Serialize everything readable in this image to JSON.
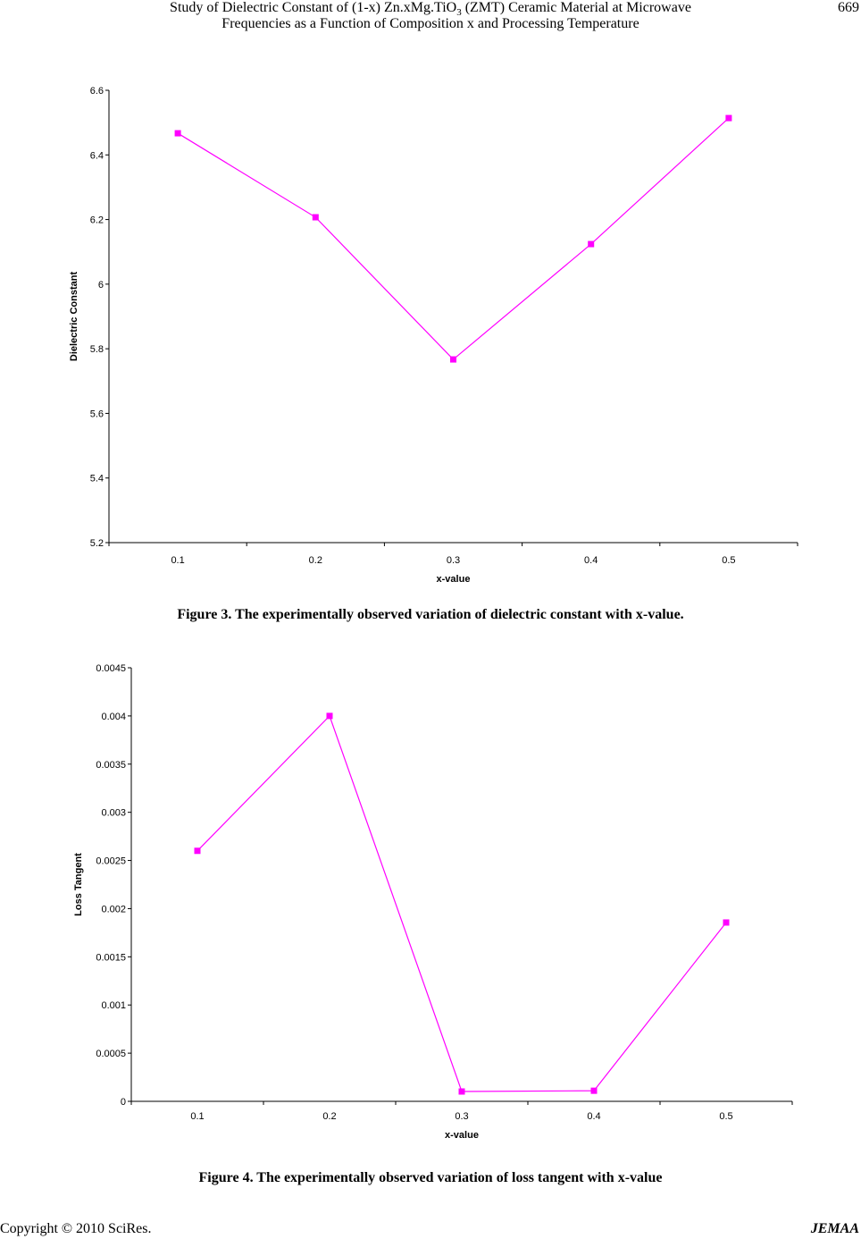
{
  "header": {
    "title_line1_pre": "Study of Dielectric Constant of (1-x) Zn.xMg.TiO",
    "title_line1_sub": "3",
    "title_line1_post": " (ZMT) Ceramic Material at Microwave",
    "title_line2": "Frequencies as a Function of Composition x and Processing Temperature",
    "page_number": "669"
  },
  "captions": {
    "fig3": "Figure 3. The experimentally observed variation of dielectric constant with x-value.",
    "fig4": "Figure 4. The experimentally observed variation of loss tangent with x-value"
  },
  "footer": {
    "copyright": "Copyright © 2010 SciRes.",
    "journal": "JEMAA"
  },
  "colors": {
    "series": "#ff00ff",
    "axis": "#000000"
  },
  "chart_data": [
    {
      "type": "line",
      "title": "",
      "xlabel": "x-value",
      "ylabel": "Dielectric Constant",
      "categories": [
        "0.1",
        "0.2",
        "0.3",
        "0.4",
        "0.5"
      ],
      "ylim": [
        5.2,
        6.6
      ],
      "yticks": [
        "5.2",
        "5.4",
        "5.6",
        "5.8",
        "6",
        "6.2",
        "6.4",
        "6.6"
      ],
      "grid": false,
      "series": [
        {
          "name": "Dielectric Constant",
          "values": [
            6.467,
            6.207,
            5.767,
            6.124,
            6.514
          ]
        }
      ]
    },
    {
      "type": "line",
      "title": "",
      "xlabel": "x-value",
      "ylabel": "Loss Tangent",
      "categories": [
        "0.1",
        "0.2",
        "0.3",
        "0.4",
        "0.5"
      ],
      "ylim": [
        0,
        0.0045
      ],
      "yticks": [
        "0",
        "0.0005",
        "0.001",
        "0.0015",
        "0.002",
        "0.0025",
        "0.003",
        "0.0035",
        "0.004",
        "0.0045"
      ],
      "grid": false,
      "series": [
        {
          "name": "Loss Tangent",
          "values": [
            0.0026,
            0.004,
            0.000102,
            0.00011,
            0.001856
          ]
        }
      ]
    }
  ]
}
